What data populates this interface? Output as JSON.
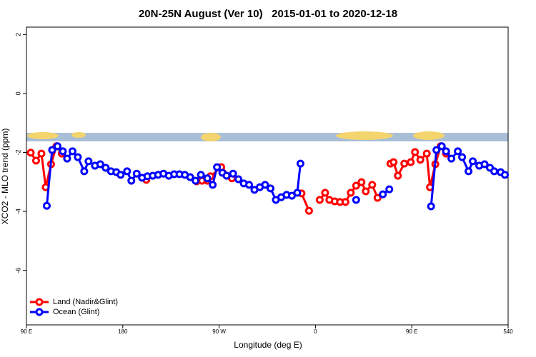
{
  "chart_data": {
    "type": "line",
    "title": "20N-25N August (Ver 10)   2015-01-01 to 2020-12-18",
    "x_label": "Longitude (deg E)",
    "y_label": "XCO2 - MLO trend (ppm)",
    "xlim": [
      90,
      540
    ],
    "xticks": [
      {
        "value": 90,
        "label": "90 E"
      },
      180,
      {
        "value": 270,
        "label": "90 W"
      },
      {
        "value": 360,
        "label": "0"
      },
      {
        "value": 450,
        "label": "90 E"
      },
      540
    ],
    "ylim": [
      -7.85,
      2.25
    ],
    "yticks": [
      2,
      0,
      -2,
      -4,
      -6
    ],
    "legend": "bottom-left",
    "series": [
      {
        "name": "Land (Nadir&Glint)",
        "color": "#ff0000",
        "x": [
          94,
          99,
          104,
          108,
          113,
          118,
          123,
          null,
          202,
          null,
          249,
          254,
          259,
          262,
          272,
          282,
          null,
          347,
          354,
          null,
          364,
          369,
          373,
          378,
          383,
          388,
          393,
          398,
          403,
          407,
          413,
          418,
          null,
          430,
          433,
          437,
          443,
          449,
          453,
          458,
          464,
          467,
          472,
          477,
          482
        ],
        "values": [
          -2.01,
          -2.28,
          -2.04,
          -3.18,
          -2.4,
          -1.79,
          -2.04,
          null,
          -2.93,
          null,
          -2.98,
          -2.96,
          -2.96,
          -2.81,
          -2.5,
          -2.88,
          null,
          -3.39,
          -3.98,
          null,
          -3.61,
          -3.37,
          -3.61,
          -3.66,
          -3.68,
          -3.68,
          -3.37,
          -3.13,
          -3.01,
          -3.32,
          -3.1,
          -3.54,
          null,
          -2.38,
          -2.33,
          -2.79,
          -2.38,
          -2.33,
          -1.99,
          -2.25,
          -2.04,
          -3.18,
          -2.4,
          -1.79,
          -2.04
        ]
      },
      {
        "name": "Ocean (Glint)",
        "color": "#0000ff",
        "x": [
          109,
          114,
          119,
          124,
          128,
          133,
          138,
          144,
          148,
          154,
          159,
          164,
          169,
          174,
          178,
          184,
          188,
          193,
          198,
          203,
          208,
          213,
          218,
          223,
          228,
          233,
          238,
          243,
          248,
          253,
          259,
          264,
          268,
          273,
          277,
          283,
          288,
          293,
          298,
          303,
          308,
          313,
          318,
          323,
          328,
          333,
          338,
          343,
          346,
          null,
          398,
          null,
          423,
          429,
          null,
          468,
          473,
          478,
          482,
          487,
          493,
          497,
          503,
          507,
          513,
          518,
          523,
          527,
          533,
          537
        ],
        "values": [
          -3.81,
          -1.92,
          -1.79,
          -1.96,
          -2.21,
          -1.96,
          -2.16,
          -2.64,
          -2.3,
          -2.45,
          -2.4,
          -2.52,
          -2.64,
          -2.67,
          -2.76,
          -2.64,
          -2.96,
          -2.72,
          -2.86,
          -2.81,
          -2.79,
          -2.76,
          -2.72,
          -2.79,
          -2.74,
          -2.74,
          -2.76,
          -2.84,
          -2.96,
          -2.76,
          -2.88,
          -3.1,
          -2.5,
          -2.69,
          -2.79,
          -2.72,
          -2.91,
          -3.05,
          -3.1,
          -3.27,
          -3.18,
          -3.1,
          -3.22,
          -3.61,
          -3.52,
          -3.44,
          -3.47,
          -3.37,
          -2.38,
          null,
          -3.61,
          null,
          -3.42,
          -3.25,
          null,
          -3.83,
          -1.92,
          -1.79,
          -1.96,
          -2.21,
          -1.96,
          -2.16,
          -2.64,
          -2.3,
          -2.45,
          -2.4,
          -2.52,
          -2.64,
          -2.67,
          -2.76
        ]
      }
    ]
  }
}
